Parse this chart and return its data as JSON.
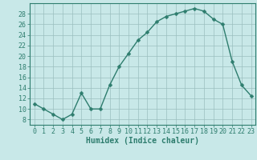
{
  "x": [
    0,
    1,
    2,
    3,
    4,
    5,
    6,
    7,
    8,
    9,
    10,
    11,
    12,
    13,
    14,
    15,
    16,
    17,
    18,
    19,
    20,
    21,
    22,
    23
  ],
  "y": [
    11,
    10,
    9,
    8,
    9,
    13,
    10,
    10,
    14.5,
    18,
    20.5,
    23,
    24.5,
    26.5,
    27.5,
    28,
    28.5,
    29,
    28.5,
    27,
    26,
    19,
    14.5,
    12.5
  ],
  "line_color": "#2e7d6e",
  "marker_color": "#2e7d6e",
  "bg_color": "#c8e8e8",
  "grid_color": "#9bbfbf",
  "xlabel": "Humidex (Indice chaleur)",
  "ylim": [
    7,
    30
  ],
  "xlim": [
    -0.5,
    23.5
  ],
  "yticks": [
    8,
    10,
    12,
    14,
    16,
    18,
    20,
    22,
    24,
    26,
    28
  ],
  "xticks": [
    0,
    1,
    2,
    3,
    4,
    5,
    6,
    7,
    8,
    9,
    10,
    11,
    12,
    13,
    14,
    15,
    16,
    17,
    18,
    19,
    20,
    21,
    22,
    23
  ],
  "xlabel_fontsize": 7,
  "tick_fontsize": 6,
  "line_width": 1.0,
  "marker_size": 2.5
}
